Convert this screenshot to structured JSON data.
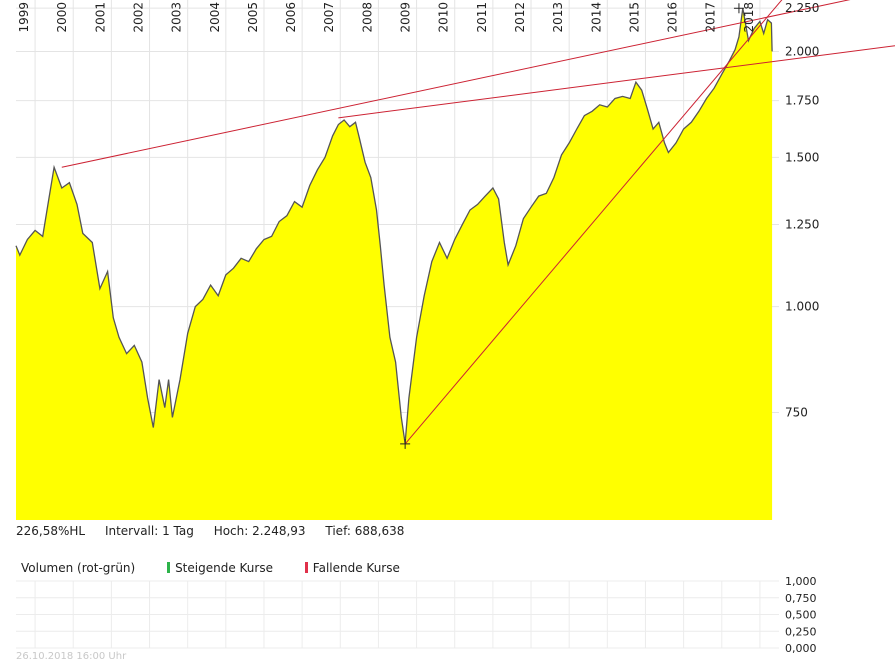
{
  "chart_data": {
    "type": "area",
    "y_scale": "log",
    "ylim": [
      560,
      2300
    ],
    "xlim": [
      1999.0,
      2019.0
    ],
    "year_labels": [
      "1999",
      "2000",
      "2001",
      "2002",
      "2003",
      "2004",
      "2005",
      "2006",
      "2007",
      "2008",
      "2009",
      "2010",
      "2011",
      "2012",
      "2013",
      "2014",
      "2015",
      "2016",
      "2017",
      "2018"
    ],
    "y_ticks": [
      {
        "value": 750,
        "label": "750"
      },
      {
        "value": 1000,
        "label": "1.000"
      },
      {
        "value": 1250,
        "label": "1.250"
      },
      {
        "value": 1500,
        "label": "1.500"
      },
      {
        "value": 1750,
        "label": "1.750"
      },
      {
        "value": 2000,
        "label": "2.000"
      },
      {
        "value": 2250,
        "label": "2.250"
      }
    ],
    "fill_color": "#ffff00",
    "line_color": "#555555",
    "trend_color": "#cc2233",
    "series": [
      {
        "x": [
          1999.0,
          1999.1,
          1999.3,
          1999.5,
          1999.7,
          1999.85,
          2000.0,
          2000.2,
          2000.4,
          2000.6,
          2000.75,
          2001.0,
          2001.2,
          2001.4,
          2001.55,
          2001.7,
          2001.9,
          2002.1,
          2002.3,
          2002.45,
          2002.6,
          2002.75,
          2002.9,
          2003.0,
          2003.1,
          2003.3,
          2003.5,
          2003.7,
          2003.9,
          2004.1,
          2004.3,
          2004.5,
          2004.7,
          2004.9,
          2005.1,
          2005.3,
          2005.5,
          2005.7,
          2005.9,
          2006.1,
          2006.3,
          2006.5,
          2006.7,
          2006.9,
          2007.1,
          2007.3,
          2007.45,
          2007.6,
          2007.75,
          2007.9,
          2008.0,
          2008.15,
          2008.3,
          2008.45,
          2008.55,
          2008.65,
          2008.8,
          2008.95,
          2009.1,
          2009.2,
          2009.3,
          2009.5,
          2009.7,
          2009.9,
          2010.1,
          2010.3,
          2010.5,
          2010.7,
          2010.9,
          2011.1,
          2011.3,
          2011.5,
          2011.65,
          2011.8,
          2011.9,
          2012.1,
          2012.3,
          2012.5,
          2012.7,
          2012.9,
          2013.1,
          2013.3,
          2013.5,
          2013.7,
          2013.9,
          2014.1,
          2014.3,
          2014.5,
          2014.7,
          2014.9,
          2015.1,
          2015.25,
          2015.4,
          2015.55,
          2015.7,
          2015.85,
          2016.0,
          2016.1,
          2016.3,
          2016.5,
          2016.7,
          2016.9,
          2017.1,
          2017.3,
          2017.5,
          2017.7,
          2017.85,
          2017.95,
          2018.05,
          2018.2,
          2018.35,
          2018.5,
          2018.6,
          2018.7,
          2018.8,
          2018.82
        ],
        "y": [
          1180,
          1150,
          1200,
          1230,
          1210,
          1330,
          1460,
          1380,
          1400,
          1320,
          1220,
          1190,
          1050,
          1100,
          970,
          920,
          880,
          900,
          860,
          780,
          720,
          820,
          760,
          820,
          740,
          820,
          930,
          1000,
          1020,
          1060,
          1030,
          1090,
          1110,
          1140,
          1130,
          1170,
          1200,
          1210,
          1260,
          1280,
          1330,
          1310,
          1390,
          1450,
          1500,
          1590,
          1640,
          1660,
          1630,
          1650,
          1580,
          1480,
          1420,
          1300,
          1180,
          1060,
          920,
          860,
          740,
          690,
          780,
          920,
          1030,
          1130,
          1190,
          1140,
          1200,
          1250,
          1300,
          1320,
          1350,
          1380,
          1340,
          1190,
          1120,
          1180,
          1270,
          1310,
          1350,
          1360,
          1420,
          1510,
          1560,
          1620,
          1680,
          1700,
          1730,
          1720,
          1760,
          1770,
          1760,
          1840,
          1800,
          1710,
          1620,
          1650,
          1560,
          1520,
          1560,
          1620,
          1650,
          1700,
          1760,
          1810,
          1880,
          1950,
          2010,
          2080,
          2248.93,
          2060,
          2130,
          2170,
          2100,
          2180,
          2160,
          2000
        ]
      }
    ],
    "trend_lines": [
      {
        "from": [
          2000.2,
          1460
        ],
        "to": [
          2019.0,
          2210
        ]
      },
      {
        "from": [
          2007.45,
          1670
        ],
        "to": [
          2019.0,
          1950
        ]
      },
      {
        "from": [
          2009.2,
          688.638
        ],
        "to": [
          2019.0,
          2280
        ]
      }
    ],
    "markers": [
      {
        "x": 2009.2,
        "y": 688.638
      },
      {
        "x": 2017.95,
        "y": 2248.93
      }
    ]
  },
  "info": {
    "hl": "226,58%HL",
    "interval": "Intervall: 1 Tag",
    "high": "Hoch:  2.248,93",
    "low": "Tief:  688,638"
  },
  "volume": {
    "title": "Volumen (rot-grün)",
    "rising": "Steigende Kurse",
    "falling": "Fallende Kurse",
    "ticks": [
      "1,000",
      "0,750",
      "0,500",
      "0,250",
      "0,000"
    ]
  },
  "timestamp": "26.10.2018 16:00 Uhr"
}
